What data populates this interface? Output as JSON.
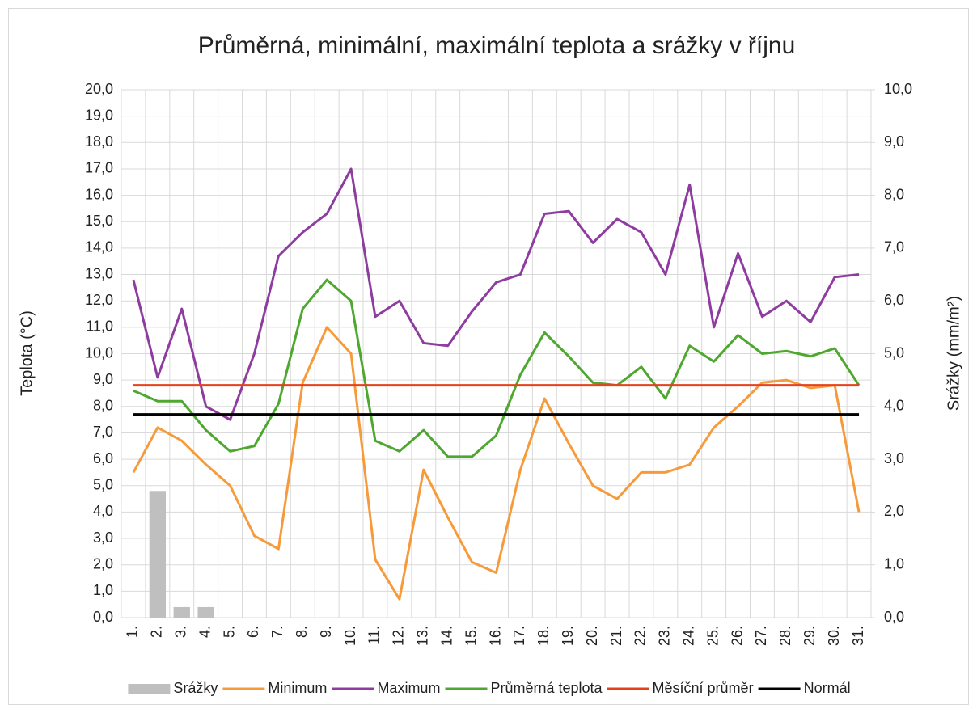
{
  "chart_data": {
    "type": "combo",
    "title": "Průměrná, minimální, maximální teplota a srážky v říjnu",
    "ylabel": "Teplota (°C)",
    "y2label": "Srážky (mm/m²)",
    "categories": [
      "1.",
      "2.",
      "3.",
      "4.",
      "5.",
      "6.",
      "7.",
      "8.",
      "9.",
      "10.",
      "11.",
      "12.",
      "13.",
      "14.",
      "15.",
      "16.",
      "17.",
      "18.",
      "19.",
      "20.",
      "21.",
      "22.",
      "23.",
      "24.",
      "25.",
      "26.",
      "27.",
      "28.",
      "29.",
      "30.",
      "31."
    ],
    "ylim": [
      0,
      20
    ],
    "yticks": [
      {
        "value": 0,
        "label": "0,0"
      },
      {
        "value": 1,
        "label": "1,0"
      },
      {
        "value": 2,
        "label": "2,0"
      },
      {
        "value": 3,
        "label": "3,0"
      },
      {
        "value": 4,
        "label": "4,0"
      },
      {
        "value": 5,
        "label": "5,0"
      },
      {
        "value": 6,
        "label": "6,0"
      },
      {
        "value": 7,
        "label": "7,0"
      },
      {
        "value": 8,
        "label": "8,0"
      },
      {
        "value": 9,
        "label": "9,0"
      },
      {
        "value": 10,
        "label": "10,0"
      },
      {
        "value": 11,
        "label": "11,0"
      },
      {
        "value": 12,
        "label": "12,0"
      },
      {
        "value": 13,
        "label": "13,0"
      },
      {
        "value": 14,
        "label": "14,0"
      },
      {
        "value": 15,
        "label": "15,0"
      },
      {
        "value": 16,
        "label": "16,0"
      },
      {
        "value": 17,
        "label": "17,0"
      },
      {
        "value": 18,
        "label": "18,0"
      },
      {
        "value": 19,
        "label": "19,0"
      },
      {
        "value": 20,
        "label": "20,0"
      }
    ],
    "y2lim": [
      0,
      10
    ],
    "y2ticks": [
      {
        "value": 0,
        "label": "0,0"
      },
      {
        "value": 1,
        "label": "1,0"
      },
      {
        "value": 2,
        "label": "2,0"
      },
      {
        "value": 3,
        "label": "3,0"
      },
      {
        "value": 4,
        "label": "4,0"
      },
      {
        "value": 5,
        "label": "5,0"
      },
      {
        "value": 6,
        "label": "6,0"
      },
      {
        "value": 7,
        "label": "7,0"
      },
      {
        "value": 8,
        "label": "8,0"
      },
      {
        "value": 9,
        "label": "9,0"
      },
      {
        "value": 10,
        "label": "10,0"
      }
    ],
    "grid": true,
    "legend": "bottom",
    "series": [
      {
        "name": "Srážky",
        "type": "bar",
        "axis": "y2",
        "color": "#bfbfbf",
        "values": [
          0,
          2.4,
          0.2,
          0.2,
          0,
          0,
          0,
          0,
          0,
          0,
          0,
          0,
          0,
          0,
          0,
          0,
          0,
          0,
          0,
          0,
          0,
          0,
          0,
          0,
          0,
          0,
          0,
          0,
          0,
          0,
          0
        ]
      },
      {
        "name": "Minimum",
        "type": "line",
        "color": "#f79a3a",
        "values": [
          5.5,
          7.2,
          6.7,
          5.8,
          5.0,
          3.1,
          2.6,
          8.9,
          11.0,
          10.0,
          2.2,
          0.7,
          5.6,
          3.8,
          2.1,
          1.7,
          5.6,
          8.3,
          6.6,
          5.0,
          4.5,
          5.5,
          5.5,
          5.8,
          7.2,
          8.0,
          8.9,
          9.0,
          8.7,
          8.8,
          4.0
        ]
      },
      {
        "name": "Maximum",
        "type": "line",
        "color": "#8e3ca0",
        "values": [
          12.8,
          9.1,
          11.7,
          8.0,
          7.5,
          10.0,
          13.7,
          14.6,
          15.3,
          17.0,
          11.4,
          12.0,
          10.4,
          10.3,
          11.6,
          12.7,
          13.0,
          15.3,
          15.4,
          14.2,
          15.1,
          14.6,
          13.0,
          16.4,
          11.0,
          13.8,
          11.4,
          12.0,
          11.2,
          12.9,
          13.0
        ]
      },
      {
        "name": "Průměrná teplota",
        "type": "line",
        "color": "#4ea72e",
        "values": [
          8.6,
          8.2,
          8.2,
          7.1,
          6.3,
          6.5,
          8.1,
          11.7,
          12.8,
          12.0,
          6.7,
          6.3,
          7.1,
          6.1,
          6.1,
          6.9,
          9.2,
          10.8,
          9.9,
          8.9,
          8.8,
          9.5,
          8.3,
          10.3,
          9.7,
          10.7,
          10.0,
          10.1,
          9.9,
          10.2,
          8.8
        ]
      },
      {
        "name": "Měsíční průměr",
        "type": "line",
        "color": "#e8401c",
        "values": [
          8.8,
          8.8,
          8.8,
          8.8,
          8.8,
          8.8,
          8.8,
          8.8,
          8.8,
          8.8,
          8.8,
          8.8,
          8.8,
          8.8,
          8.8,
          8.8,
          8.8,
          8.8,
          8.8,
          8.8,
          8.8,
          8.8,
          8.8,
          8.8,
          8.8,
          8.8,
          8.8,
          8.8,
          8.8,
          8.8,
          8.8
        ]
      },
      {
        "name": "Normál",
        "type": "line",
        "color": "#000000",
        "values": [
          7.7,
          7.7,
          7.7,
          7.7,
          7.7,
          7.7,
          7.7,
          7.7,
          7.7,
          7.7,
          7.7,
          7.7,
          7.7,
          7.7,
          7.7,
          7.7,
          7.7,
          7.7,
          7.7,
          7.7,
          7.7,
          7.7,
          7.7,
          7.7,
          7.7,
          7.7,
          7.7,
          7.7,
          7.7,
          7.7,
          7.7
        ]
      }
    ]
  }
}
